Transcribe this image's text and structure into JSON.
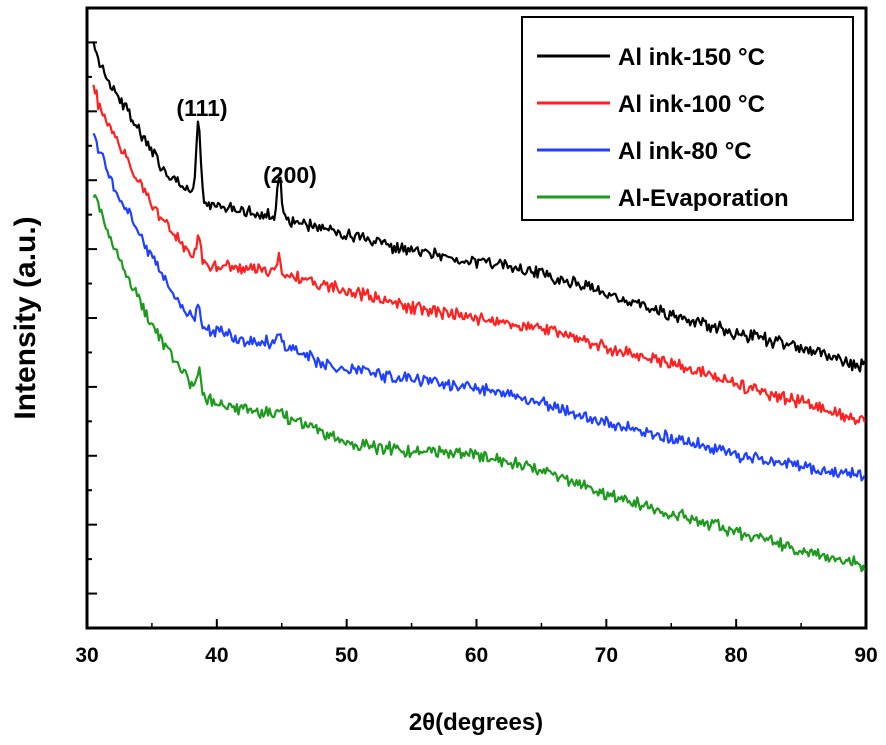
{
  "chart_data": {
    "type": "line",
    "xlabel": "2θ(degrees)",
    "ylabel": "Intensity (a.u.)",
    "xlim": [
      30,
      90
    ],
    "ylim": [
      0,
      100
    ],
    "x_ticks": [
      "30",
      "40",
      "50",
      "60",
      "70",
      "80",
      "90"
    ],
    "y_tick_labels_shown": false,
    "grid": false,
    "legend_position": "top-right",
    "annotations": [
      {
        "text": "(111)",
        "x": 38.6
      },
      {
        "text": "(200)",
        "x": 44.8
      }
    ],
    "peaks_x": [
      38.6,
      44.8
    ],
    "series": [
      {
        "name": "Al ink-150 °C",
        "color": "#000000",
        "x": [
          30.5,
          31,
          32,
          33,
          34,
          35,
          36,
          37,
          38,
          39,
          40,
          42,
          44,
          46,
          48,
          50,
          55,
          60,
          65,
          70,
          75,
          80,
          85,
          90
        ],
        "y": [
          95,
          91,
          87,
          84,
          80,
          77,
          73.5,
          71.5,
          70.5,
          68.3,
          68,
          67.5,
          66.5,
          65.5,
          64.5,
          63.3,
          60.7,
          59.2,
          57.2,
          54,
          50.4,
          47.6,
          45.2,
          42
        ],
        "peaks": [
          {
            "x": 38.6,
            "h": 12.6
          },
          {
            "x": 44.8,
            "h": 6.8
          }
        ]
      },
      {
        "name": "Al ink-100 °C",
        "color": "#ff2020",
        "x": [
          30.5,
          31,
          32,
          33,
          34,
          35,
          36,
          37,
          38,
          39,
          40,
          42,
          44,
          46,
          48,
          50,
          55,
          60,
          65,
          70,
          75,
          80,
          85,
          90
        ],
        "y": [
          87.5,
          83.5,
          79.5,
          76,
          72,
          68,
          65.5,
          62.5,
          60.2,
          58.5,
          58.5,
          58,
          57.5,
          56.5,
          55.5,
          54.5,
          51.6,
          50,
          48.2,
          45.2,
          42.8,
          39.3,
          36.5,
          33
        ],
        "peaks": [
          {
            "x": 38.6,
            "h": 4.0
          },
          {
            "x": 44.8,
            "h": 2.5
          }
        ]
      },
      {
        "name": "Al ink-80 °C",
        "color": "#2040ff",
        "x": [
          30.5,
          31,
          32,
          33,
          34,
          35,
          36,
          37,
          38,
          39,
          40,
          42,
          44,
          46,
          48,
          50,
          55,
          60,
          65,
          70,
          75,
          80,
          85,
          90
        ],
        "y": [
          80,
          76.5,
          71.5,
          67.5,
          64,
          60,
          56.2,
          52.8,
          50.3,
          48.5,
          48,
          46.5,
          46,
          45,
          42.8,
          41.6,
          40.2,
          38.8,
          36.3,
          33.1,
          30.7,
          27.9,
          26,
          24.5
        ],
        "peaks": [
          {
            "x": 38.6,
            "h": 3.0
          },
          {
            "x": 44.8,
            "h": 2.0
          }
        ]
      },
      {
        "name": "Al-Evaporation",
        "color": "#1e9a1e",
        "x": [
          30.5,
          31,
          32,
          33,
          34,
          35,
          36,
          37,
          38,
          39,
          40,
          42,
          44,
          46,
          48,
          50,
          55,
          60,
          65,
          70,
          75,
          80,
          85,
          90
        ],
        "y": [
          70,
          67,
          62,
          57,
          53,
          49,
          45.5,
          42.5,
          39.2,
          37,
          36.3,
          35.2,
          34.5,
          33.5,
          31.7,
          29.7,
          28.5,
          28,
          25.5,
          21.5,
          18.5,
          15.5,
          12.5,
          10
        ],
        "peaks": [
          {
            "x": 38.6,
            "h": 4.2
          },
          {
            "x": 44.8,
            "h": 1.5
          }
        ]
      }
    ]
  }
}
